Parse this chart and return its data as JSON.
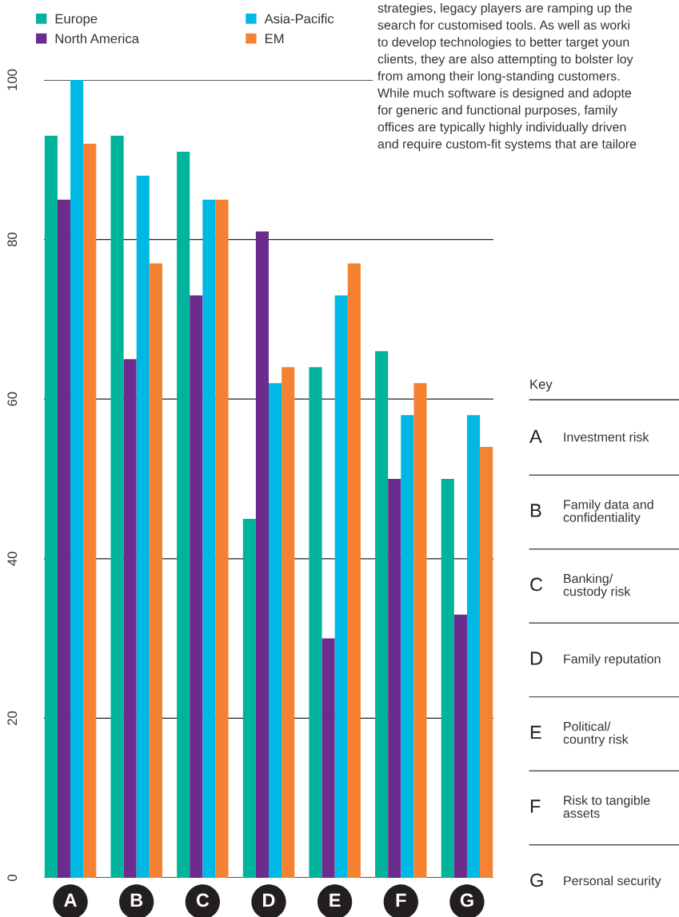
{
  "chart_data": {
    "type": "bar",
    "categories": [
      "A",
      "B",
      "C",
      "D",
      "E",
      "F",
      "G"
    ],
    "series": [
      {
        "name": "Europe",
        "color": "#00b39b",
        "values": [
          93,
          93,
          91,
          45,
          64,
          66,
          50
        ]
      },
      {
        "name": "North America",
        "color": "#6c2c8e",
        "values": [
          85,
          65,
          73,
          81,
          30,
          50,
          33
        ]
      },
      {
        "name": "Asia-Pacific",
        "color": "#00b8e4",
        "values": [
          100,
          88,
          85,
          62,
          73,
          58,
          58
        ]
      },
      {
        "name": "EM",
        "color": "#f58233",
        "values": [
          92,
          77,
          85,
          64,
          77,
          62,
          54
        ]
      }
    ],
    "ylim": [
      0,
      100
    ],
    "yticks": [
      0,
      20,
      40,
      60,
      80,
      100
    ],
    "grid": "y",
    "legend": "top left",
    "annotations": [
      "strategies, legacy players are ramping up the\nsearch for customised tools. As well as worki\nto develop technologies to better target youn\nclients, they are also attempting to bolster loy\nfrom among their long-standing customers.\nWhile much software is designed and adopte\nfor generic and functional purposes, family\noffices are typically highly individually driven\nand require custom-fit systems that are tailore",
      "Key",
      "Investment risk",
      "Family data and\nconfidentiality",
      "Banking/\ncustody risk",
      "Family reputation",
      "Political/\ncountry risk",
      "Risk to tangible\nassets",
      "Personal security"
    ]
  }
}
